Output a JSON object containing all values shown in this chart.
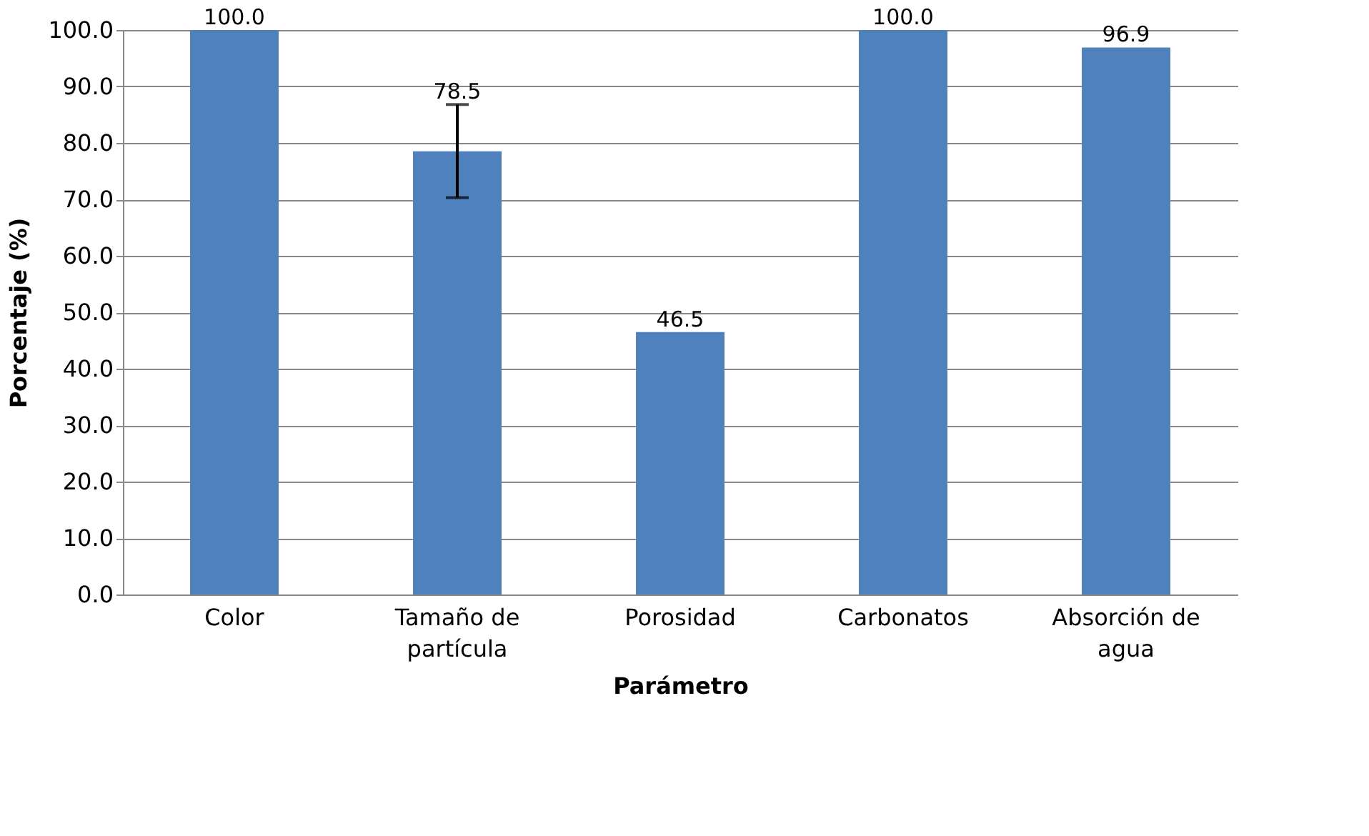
{
  "chart_data": {
    "type": "bar",
    "xlabel": "Parámetro",
    "ylabel": "Porcentaje (%)",
    "categories": [
      "Color",
      "Tamaño de\npartícula",
      "Porosidad",
      "Carbonatos",
      "Absorción de\nagua"
    ],
    "values": [
      100.0,
      78.5,
      46.5,
      100.0,
      96.9
    ],
    "value_labels": [
      "100.0",
      "78.5",
      "46.5",
      "100.0",
      "96.9"
    ],
    "errors": [
      null,
      [
        70.3,
        86.8
      ],
      null,
      null,
      null
    ],
    "color": "#4f81bd",
    "ylim": [
      0,
      100
    ],
    "yticks": [
      {
        "value": 0,
        "label": "0.0"
      },
      {
        "value": 10,
        "label": "10.0"
      },
      {
        "value": 20,
        "label": "20.0"
      },
      {
        "value": 30,
        "label": "30.0"
      },
      {
        "value": 40,
        "label": "40.0"
      },
      {
        "value": 50,
        "label": "50.0"
      },
      {
        "value": 60,
        "label": "60.0"
      },
      {
        "value": 70,
        "label": "70.0"
      },
      {
        "value": 80,
        "label": "80.0"
      },
      {
        "value": 90,
        "label": "90.0"
      },
      {
        "value": 100,
        "label": "100.0"
      }
    ],
    "grid": "y"
  }
}
